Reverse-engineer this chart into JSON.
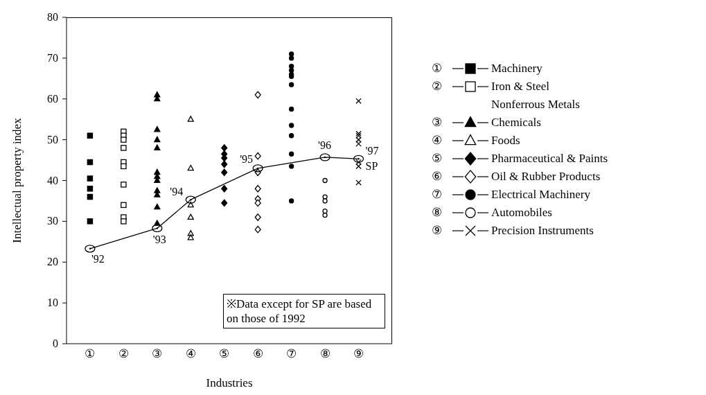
{
  "chart_data": {
    "type": "scatter",
    "xlabel": "Industries",
    "ylabel": "Intellectual property index",
    "categories": [
      "①",
      "②",
      "③",
      "④",
      "⑤",
      "⑥",
      "⑦",
      "⑧",
      "⑨"
    ],
    "ylim": [
      0,
      80
    ],
    "yticks": [
      0,
      10,
      20,
      30,
      40,
      50,
      60,
      70,
      80
    ],
    "legend": "right",
    "series": [
      {
        "name": "Machinery",
        "color": "#000000",
        "marker": "square",
        "x": [
          "①",
          "①",
          "①",
          "①",
          "①",
          "①"
        ],
        "values": [
          51,
          44.5,
          40.5,
          38,
          36,
          30
        ]
      },
      {
        "name": "Iron & Steel\nNonferrous Metals",
        "color": "#ffffff",
        "marker": "square",
        "x": [
          "②",
          "②",
          "②",
          "②",
          "②",
          "②",
          "②",
          "②",
          "②",
          "②"
        ],
        "values": [
          52,
          51,
          50,
          48,
          44.5,
          43.5,
          39,
          34,
          31,
          30
        ]
      },
      {
        "name": "Chemicals",
        "color": "#000000",
        "marker": "triangle",
        "x": [
          "③",
          "③",
          "③",
          "③",
          "③",
          "③",
          "③",
          "③",
          "③",
          "③",
          "③",
          "③"
        ],
        "values": [
          61,
          60,
          52.5,
          50,
          48,
          42,
          41,
          40,
          37.5,
          36.5,
          33.5,
          29.5
        ]
      },
      {
        "name": "Foods",
        "color": "#ffffff",
        "marker": "triangle",
        "x": [
          "④",
          "④",
          "④",
          "④",
          "④",
          "④"
        ],
        "values": [
          55,
          43,
          34,
          31,
          27,
          26
        ]
      },
      {
        "name": "Pharmaceutical & Paints",
        "color": "#000000",
        "marker": "diamond",
        "x": [
          "⑤",
          "⑤",
          "⑤",
          "⑤",
          "⑤",
          "⑤",
          "⑤"
        ],
        "values": [
          48,
          46.5,
          45.5,
          44,
          42,
          38,
          34.5
        ]
      },
      {
        "name": "Oil & Rubber Products",
        "color": "#ffffff",
        "marker": "diamond",
        "x": [
          "⑥",
          "⑥",
          "⑥",
          "⑥",
          "⑥",
          "⑥",
          "⑥",
          "⑥"
        ],
        "values": [
          61,
          46,
          42,
          38,
          35.5,
          34.5,
          31,
          28
        ]
      },
      {
        "name": "Electrical Machinery",
        "color": "#000000",
        "marker": "circle",
        "x": [
          "⑦",
          "⑦",
          "⑦",
          "⑦",
          "⑦",
          "⑦",
          "⑦",
          "⑦",
          "⑦",
          "⑦",
          "⑦",
          "⑦",
          "⑦"
        ],
        "values": [
          71,
          70,
          68,
          67,
          66,
          65.5,
          63.5,
          57.5,
          53.5,
          51,
          46.5,
          43.5,
          35
        ]
      },
      {
        "name": "Automobiles",
        "color": "#ffffff",
        "marker": "circle",
        "x": [
          "⑧",
          "⑧",
          "⑧",
          "⑧",
          "⑧"
        ],
        "values": [
          40,
          36,
          35,
          32.5,
          31.5
        ]
      },
      {
        "name": "Precision Instruments",
        "color": "#000000",
        "marker": "cross",
        "x": [
          "⑨",
          "⑨",
          "⑨",
          "⑨",
          "⑨",
          "⑨",
          "⑨",
          "⑨"
        ],
        "values": [
          59.5,
          51.5,
          51,
          50,
          49,
          44.5,
          43.5,
          39.5
        ]
      },
      {
        "type": "line",
        "color": "#000000",
        "marker": "circle",
        "values": [
          23.3,
          null,
          28.3,
          35.3,
          null,
          43,
          null,
          45.7,
          45.3
        ]
      }
    ],
    "annotations": [
      {
        "text": "'92",
        "x": "①",
        "y": 23.3
      },
      {
        "text": "'93",
        "x": "③",
        "y": 28.3
      },
      {
        "text": "'94",
        "x": "④",
        "y": 35.3
      },
      {
        "text": "'95",
        "x": "⑥",
        "y": 43
      },
      {
        "text": "'96",
        "x": "⑧",
        "y": 45.7
      },
      {
        "text": "'97",
        "x": "⑨",
        "y": 45.3
      },
      {
        "text": "SP",
        "x": "⑨",
        "y": 45.3
      },
      "※Data except for SP are based on those of 1992"
    ]
  }
}
